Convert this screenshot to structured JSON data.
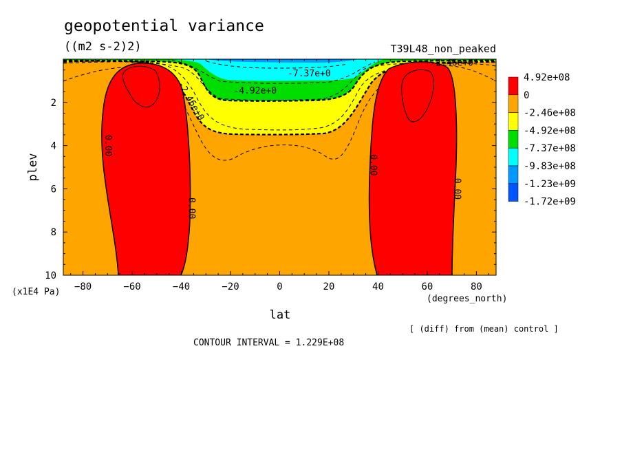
{
  "chart_data": {
    "type": "contour",
    "title": "geopotential variance",
    "units": "((m2 s-2)2)",
    "run_label": "T39L48_non_peaked",
    "xlabel": "lat",
    "xunits": "(degrees_north)",
    "ylabel": "plev",
    "yunits": "(x1E4 Pa)",
    "xlim": [
      -88,
      88
    ],
    "ylim": [
      10,
      0
    ],
    "xticks": [
      -80,
      -60,
      -40,
      -20,
      0,
      20,
      40,
      60,
      80
    ],
    "yticks": [
      2,
      4,
      6,
      8,
      10
    ],
    "footnote": "[ (diff) from (mean) control ]",
    "contour_interval": "CONTOUR INTERVAL = 1.229E+08",
    "colorbar": {
      "labels": [
        "4.92e+08",
        "0",
        "-2.46e+08",
        "-4.92e+08",
        "-7.37e+08",
        "-9.83e+08",
        "-1.23e+09",
        "-1.72e+09"
      ],
      "colors": [
        "#ff0000",
        "#ffa500",
        "#ffff00",
        "#00dd00",
        "#00ffff",
        "#0099ff",
        "#0055ff"
      ]
    },
    "contour_labels": [
      {
        "text": "0.00",
        "lat": -71,
        "plev": 4.0
      },
      {
        "text": "0.00",
        "lat": -37,
        "plev": 6.9
      },
      {
        "text": "0.00",
        "lat": 37,
        "plev": 4.9
      },
      {
        "text": "0.00",
        "lat": 71,
        "plev": 6.0
      },
      {
        "text": "-2.46e+0",
        "lat": -37,
        "plev": 2.0
      },
      {
        "text": "-2.46e+0",
        "lat": 70,
        "plev": 0.3
      },
      {
        "text": "-4.92e+0",
        "lat": -10,
        "plev": 1.6
      },
      {
        "text": "-7.37e+0",
        "lat": 12,
        "plev": 0.8
      }
    ]
  }
}
